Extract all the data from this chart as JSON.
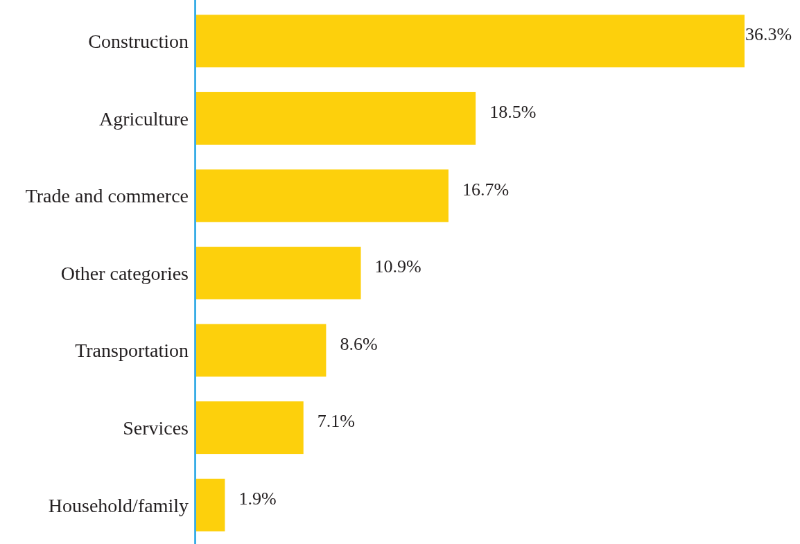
{
  "chart_data": {
    "type": "bar",
    "orientation": "horizontal",
    "categories": [
      "Construction",
      "Agriculture",
      "Trade and commerce",
      "Other categories",
      "Transportation",
      "Services",
      "Household/family"
    ],
    "values": [
      36.3,
      18.5,
      16.7,
      10.9,
      8.6,
      7.1,
      1.9
    ],
    "value_labels": [
      "36.3%",
      "18.5%",
      "16.7%",
      "10.9%",
      "8.6%",
      "7.1%",
      "1.9%"
    ],
    "color": "#fdd00c",
    "tick_labels": "y"
  }
}
